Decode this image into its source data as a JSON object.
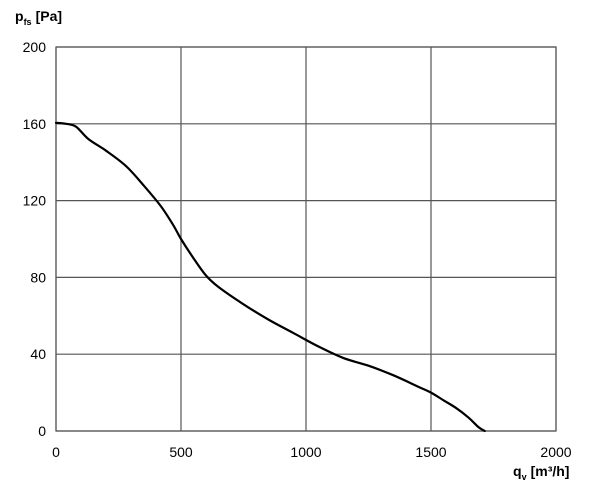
{
  "chart_data": {
    "type": "line",
    "y_label": {
      "main": "p",
      "sub": "fs",
      "unit": "[Pa]"
    },
    "x_label": {
      "main": "q",
      "sub": "v",
      "unit": "[m³/h]"
    },
    "xlim": [
      0,
      2000
    ],
    "ylim": [
      0,
      200
    ],
    "x_ticks": [
      0,
      500,
      1000,
      1500,
      2000
    ],
    "y_ticks": [
      0,
      40,
      80,
      120,
      160,
      200
    ],
    "grid": true,
    "legend": "none",
    "series": [
      {
        "color": "#000000",
        "points": [
          [
            0,
            160.5
          ],
          [
            40,
            160
          ],
          [
            80,
            158.5
          ],
          [
            130,
            152
          ],
          [
            200,
            146
          ],
          [
            280,
            138
          ],
          [
            350,
            128
          ],
          [
            420,
            117
          ],
          [
            470,
            107
          ],
          [
            500,
            100
          ],
          [
            550,
            90
          ],
          [
            600,
            81
          ],
          [
            650,
            75
          ],
          [
            750,
            66
          ],
          [
            850,
            58
          ],
          [
            950,
            51
          ],
          [
            1050,
            44
          ],
          [
            1150,
            38
          ],
          [
            1250,
            34
          ],
          [
            1350,
            29
          ],
          [
            1450,
            23
          ],
          [
            1500,
            20
          ],
          [
            1550,
            16
          ],
          [
            1600,
            12
          ],
          [
            1650,
            7
          ],
          [
            1690,
            2
          ],
          [
            1715,
            0
          ]
        ]
      }
    ]
  }
}
